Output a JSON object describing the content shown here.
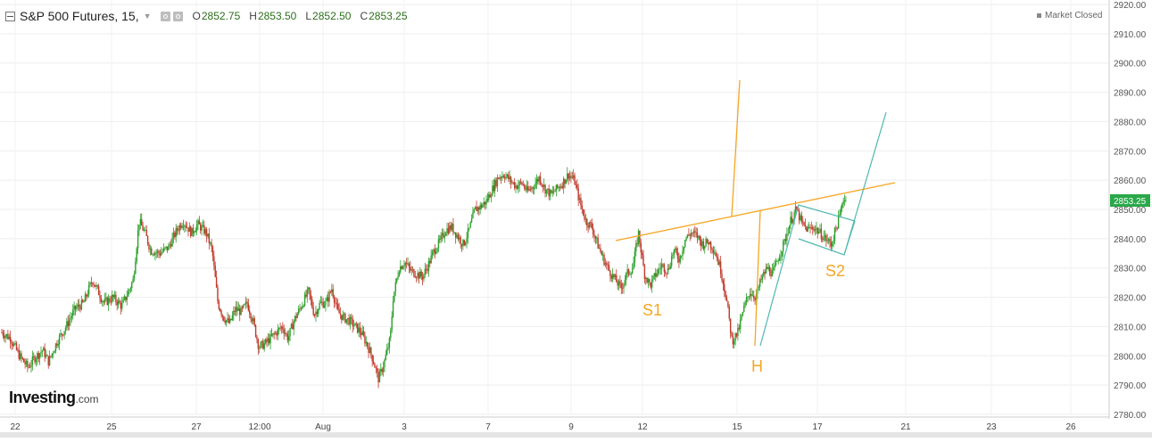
{
  "header": {
    "symbol": "S&P 500 Futures, 15,",
    "open_label": "O",
    "open": "2852.75",
    "high_label": "H",
    "high": "2853.50",
    "low_label": "L",
    "low": "2852.50",
    "close_label": "C",
    "close": "2853.25"
  },
  "status": "Market Closed",
  "logo": {
    "main": "Investing",
    "suffix": ".com"
  },
  "colors": {
    "up": "#2ca02c",
    "down": "#c0392b",
    "pattern": "#f5a623",
    "channel": "#4fb8b0",
    "price_tag": "#2aa84a"
  },
  "chart_data": {
    "type": "candlestick",
    "price_tag": "2853.25",
    "ylim": [
      2780,
      2920
    ],
    "y_ticks": [
      "2920.00",
      "2910.00",
      "2900.00",
      "2890.00",
      "2880.00",
      "2870.00",
      "2860.00",
      "2850.00",
      "2840.00",
      "2830.00",
      "2820.00",
      "2810.00",
      "2800.00",
      "2790.00",
      "2780.00"
    ],
    "x_ticks": [
      "22",
      "25",
      "27",
      "12:00",
      "Aug",
      "3",
      "7",
      "9",
      "12",
      "15",
      "17",
      "21",
      "23",
      "26"
    ],
    "price_path": [
      {
        "t": 0,
        "v": 2808
      },
      {
        "t": 3,
        "v": 2806
      },
      {
        "t": 6,
        "v": 2800
      },
      {
        "t": 9,
        "v": 2796
      },
      {
        "t": 11,
        "v": 2799
      },
      {
        "t": 14,
        "v": 2802
      },
      {
        "t": 16,
        "v": 2798
      },
      {
        "t": 19,
        "v": 2805
      },
      {
        "t": 22,
        "v": 2810
      },
      {
        "t": 25,
        "v": 2816
      },
      {
        "t": 28,
        "v": 2818
      },
      {
        "t": 31,
        "v": 2826
      },
      {
        "t": 33,
        "v": 2822
      },
      {
        "t": 35,
        "v": 2818
      },
      {
        "t": 38,
        "v": 2820
      },
      {
        "t": 41,
        "v": 2817
      },
      {
        "t": 43,
        "v": 2821
      },
      {
        "t": 45,
        "v": 2826
      },
      {
        "t": 47,
        "v": 2846
      },
      {
        "t": 49,
        "v": 2842
      },
      {
        "t": 51,
        "v": 2836
      },
      {
        "t": 54,
        "v": 2835
      },
      {
        "t": 57,
        "v": 2837
      },
      {
        "t": 60,
        "v": 2843
      },
      {
        "t": 62,
        "v": 2846
      },
      {
        "t": 65,
        "v": 2842
      },
      {
        "t": 67,
        "v": 2845
      },
      {
        "t": 70,
        "v": 2842
      },
      {
        "t": 72,
        "v": 2836
      },
      {
        "t": 74,
        "v": 2818
      },
      {
        "t": 76,
        "v": 2813
      },
      {
        "t": 78,
        "v": 2811
      },
      {
        "t": 80,
        "v": 2816
      },
      {
        "t": 82,
        "v": 2815
      },
      {
        "t": 84,
        "v": 2818
      },
      {
        "t": 86,
        "v": 2812
      },
      {
        "t": 88,
        "v": 2803
      },
      {
        "t": 90,
        "v": 2804
      },
      {
        "t": 92,
        "v": 2806
      },
      {
        "t": 94,
        "v": 2808
      },
      {
        "t": 96,
        "v": 2810
      },
      {
        "t": 98,
        "v": 2806
      },
      {
        "t": 100,
        "v": 2812
      },
      {
        "t": 103,
        "v": 2818
      },
      {
        "t": 105,
        "v": 2822
      },
      {
        "t": 107,
        "v": 2814
      },
      {
        "t": 109,
        "v": 2818
      },
      {
        "t": 111,
        "v": 2818
      },
      {
        "t": 113,
        "v": 2823
      },
      {
        "t": 115,
        "v": 2815
      },
      {
        "t": 117,
        "v": 2813
      },
      {
        "t": 119,
        "v": 2812
      },
      {
        "t": 121,
        "v": 2810
      },
      {
        "t": 123,
        "v": 2808
      },
      {
        "t": 125,
        "v": 2804
      },
      {
        "t": 127,
        "v": 2799
      },
      {
        "t": 129,
        "v": 2792
      },
      {
        "t": 131,
        "v": 2798
      },
      {
        "t": 133,
        "v": 2806
      },
      {
        "t": 134,
        "v": 2820
      },
      {
        "t": 136,
        "v": 2830
      },
      {
        "t": 138,
        "v": 2832
      },
      {
        "t": 140,
        "v": 2829
      },
      {
        "t": 142,
        "v": 2828
      },
      {
        "t": 144,
        "v": 2827
      },
      {
        "t": 146,
        "v": 2831
      },
      {
        "t": 148,
        "v": 2836
      },
      {
        "t": 150,
        "v": 2839
      },
      {
        "t": 152,
        "v": 2843
      },
      {
        "t": 154,
        "v": 2844
      },
      {
        "t": 156,
        "v": 2841
      },
      {
        "t": 158,
        "v": 2838
      },
      {
        "t": 160,
        "v": 2843
      },
      {
        "t": 162,
        "v": 2850
      },
      {
        "t": 164,
        "v": 2851
      },
      {
        "t": 166,
        "v": 2853
      },
      {
        "t": 168,
        "v": 2857
      },
      {
        "t": 170,
        "v": 2861
      },
      {
        "t": 172,
        "v": 2862
      },
      {
        "t": 174,
        "v": 2860
      },
      {
        "t": 176,
        "v": 2858
      },
      {
        "t": 178,
        "v": 2859
      },
      {
        "t": 180,
        "v": 2856
      },
      {
        "t": 182,
        "v": 2858
      },
      {
        "t": 184,
        "v": 2861
      },
      {
        "t": 186,
        "v": 2857
      },
      {
        "t": 188,
        "v": 2855
      },
      {
        "t": 190,
        "v": 2857
      },
      {
        "t": 192,
        "v": 2859
      },
      {
        "t": 194,
        "v": 2862
      },
      {
        "t": 196,
        "v": 2860
      },
      {
        "t": 198,
        "v": 2852
      },
      {
        "t": 200,
        "v": 2846
      },
      {
        "t": 202,
        "v": 2844
      },
      {
        "t": 204,
        "v": 2838
      },
      {
        "t": 206,
        "v": 2833
      },
      {
        "t": 208,
        "v": 2829
      },
      {
        "t": 210,
        "v": 2826
      },
      {
        "t": 212,
        "v": 2823
      },
      {
        "t": 214,
        "v": 2828
      },
      {
        "t": 216,
        "v": 2830
      },
      {
        "t": 218,
        "v": 2842
      },
      {
        "t": 220,
        "v": 2828
      },
      {
        "t": 222,
        "v": 2824
      },
      {
        "t": 224,
        "v": 2828
      },
      {
        "t": 226,
        "v": 2831
      },
      {
        "t": 228,
        "v": 2829
      },
      {
        "t": 230,
        "v": 2836
      },
      {
        "t": 232,
        "v": 2833
      },
      {
        "t": 234,
        "v": 2840
      },
      {
        "t": 236,
        "v": 2842
      },
      {
        "t": 238,
        "v": 2841
      },
      {
        "t": 240,
        "v": 2838
      },
      {
        "t": 242,
        "v": 2839
      },
      {
        "t": 244,
        "v": 2836
      },
      {
        "t": 246,
        "v": 2830
      },
      {
        "t": 248,
        "v": 2820
      },
      {
        "t": 250,
        "v": 2805
      },
      {
        "t": 252,
        "v": 2808
      },
      {
        "t": 254,
        "v": 2816
      },
      {
        "t": 256,
        "v": 2822
      },
      {
        "t": 258,
        "v": 2820
      },
      {
        "t": 260,
        "v": 2826
      },
      {
        "t": 262,
        "v": 2830
      },
      {
        "t": 264,
        "v": 2828
      },
      {
        "t": 266,
        "v": 2834
      },
      {
        "t": 268,
        "v": 2839
      },
      {
        "t": 270,
        "v": 2846
      },
      {
        "t": 272,
        "v": 2850
      },
      {
        "t": 274,
        "v": 2845
      },
      {
        "t": 276,
        "v": 2843
      },
      {
        "t": 278,
        "v": 2844
      },
      {
        "t": 280,
        "v": 2842
      },
      {
        "t": 282,
        "v": 2840
      },
      {
        "t": 284,
        "v": 2838
      },
      {
        "t": 286,
        "v": 2845
      },
      {
        "t": 287,
        "v": 2848
      },
      {
        "t": 288,
        "v": 2854
      },
      {
        "t": 289,
        "v": 2853
      }
    ],
    "pattern_labels": {
      "s1": "S1",
      "h": "H",
      "s2": "S2"
    }
  }
}
